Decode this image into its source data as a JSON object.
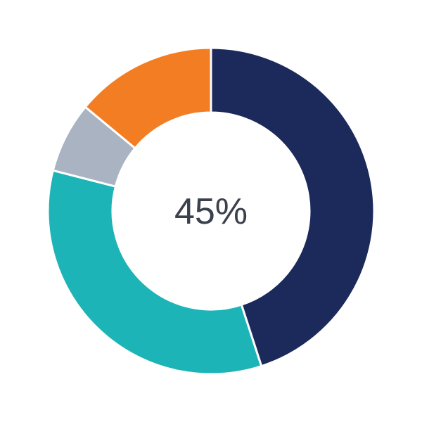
{
  "chart_data": {
    "type": "pie",
    "variant": "donut",
    "center_label": "45%",
    "start": "top",
    "direction": "clockwise",
    "values": [
      45,
      34,
      7,
      14
    ],
    "colors": [
      "#1b2a5a",
      "#1cb4b7",
      "#a9b3c1",
      "#f37d22"
    ],
    "legend": "none"
  }
}
